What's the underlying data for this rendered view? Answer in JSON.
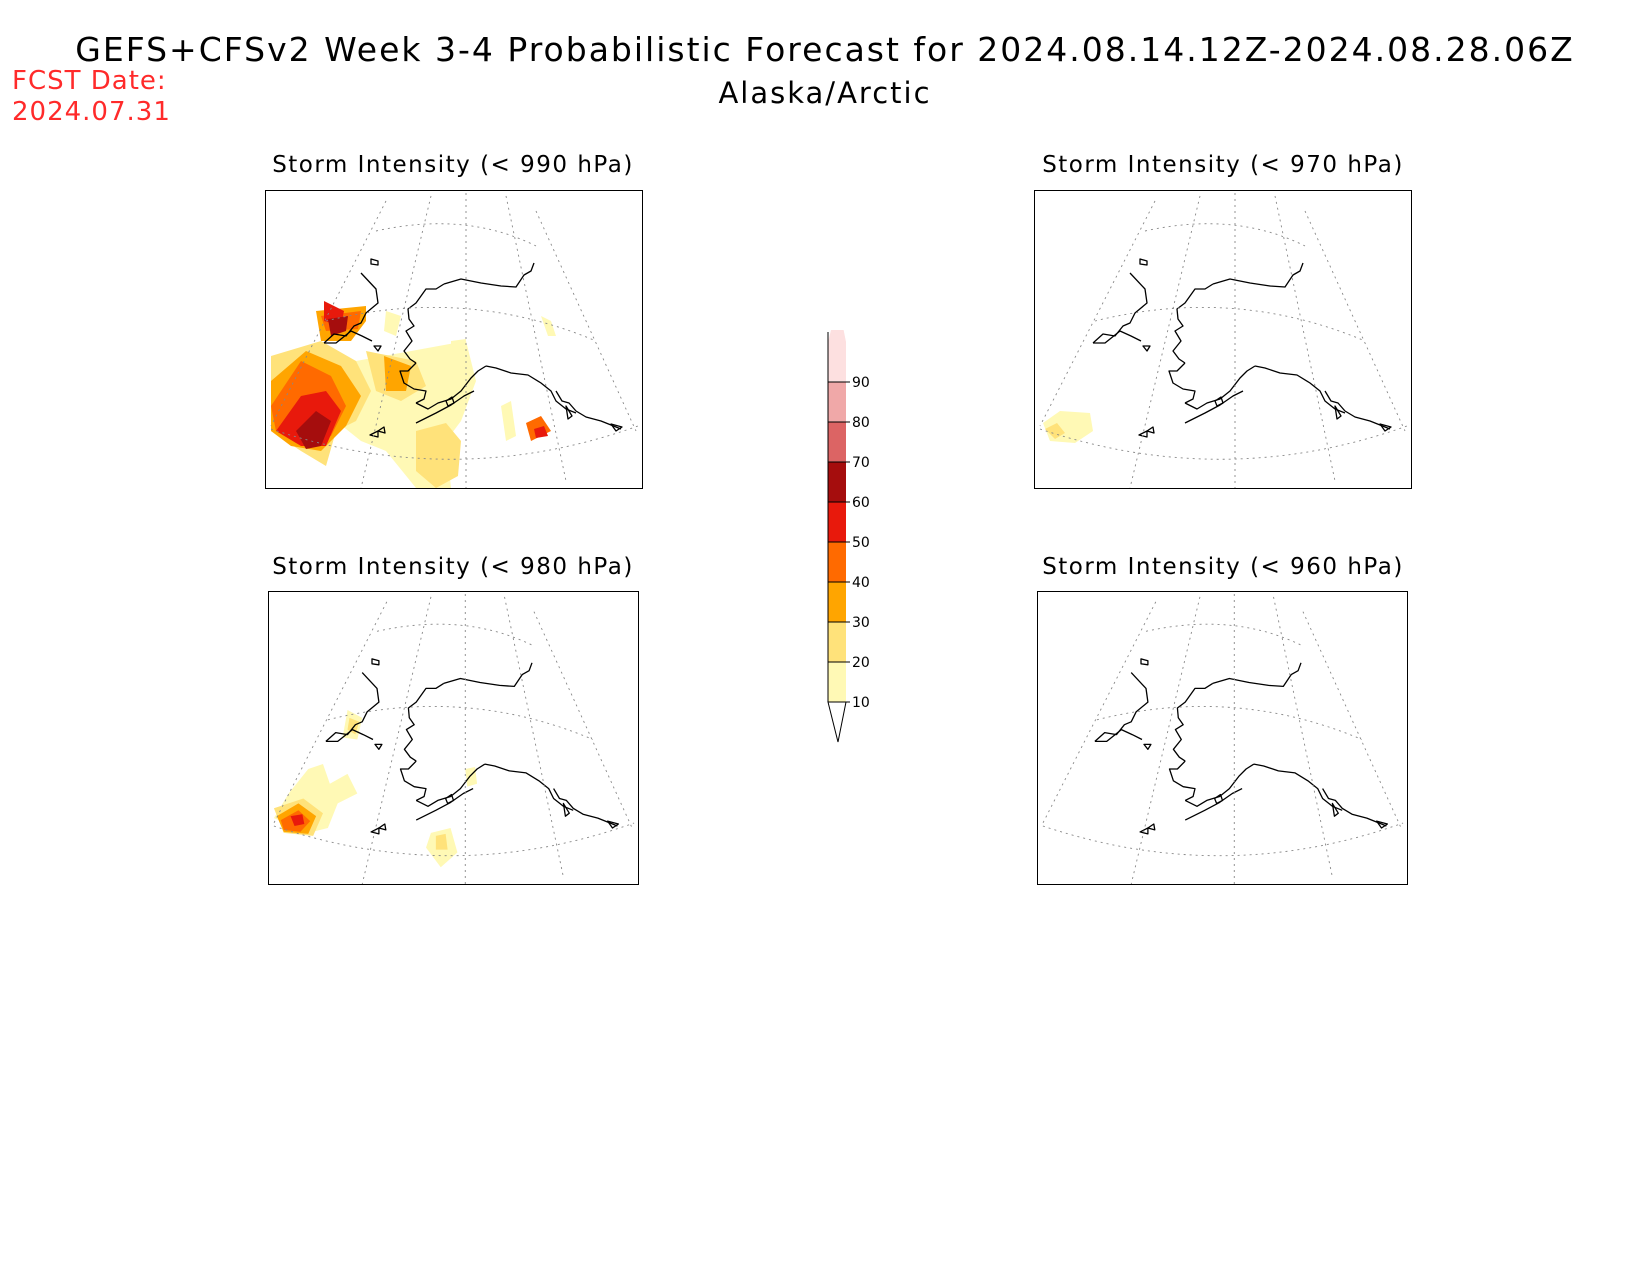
{
  "header": {
    "title": "GEFS+CFSv2 Week 3-4 Probabilistic Forecast for 2024.08.14.12Z-2024.08.28.06Z",
    "subtitle": "Alaska/Arctic",
    "fcst_label": "FCST Date:",
    "fcst_value": "2024.07.31",
    "fcst_color": "#ff2a2a"
  },
  "panels": [
    {
      "id": "p990",
      "title": "Storm Intensity (< 990 hPa)",
      "max_probability": 70
    },
    {
      "id": "p970",
      "title": "Storm Intensity (< 970 hPa)",
      "max_probability": 20
    },
    {
      "id": "p980",
      "title": "Storm Intensity (< 980 hPa)",
      "max_probability": 50
    },
    {
      "id": "p960",
      "title": "Storm Intensity (< 960 hPa)",
      "max_probability": 0
    }
  ],
  "colorbar": {
    "levels": [
      10,
      20,
      30,
      40,
      50,
      60,
      70,
      80,
      90
    ],
    "colors": [
      "#fff9b5",
      "#ffe27a",
      "#ffa500",
      "#ff6a00",
      "#e8190c",
      "#a50d0d",
      "#dc6464",
      "#f0a8a8",
      "#fde0e0"
    ]
  }
}
